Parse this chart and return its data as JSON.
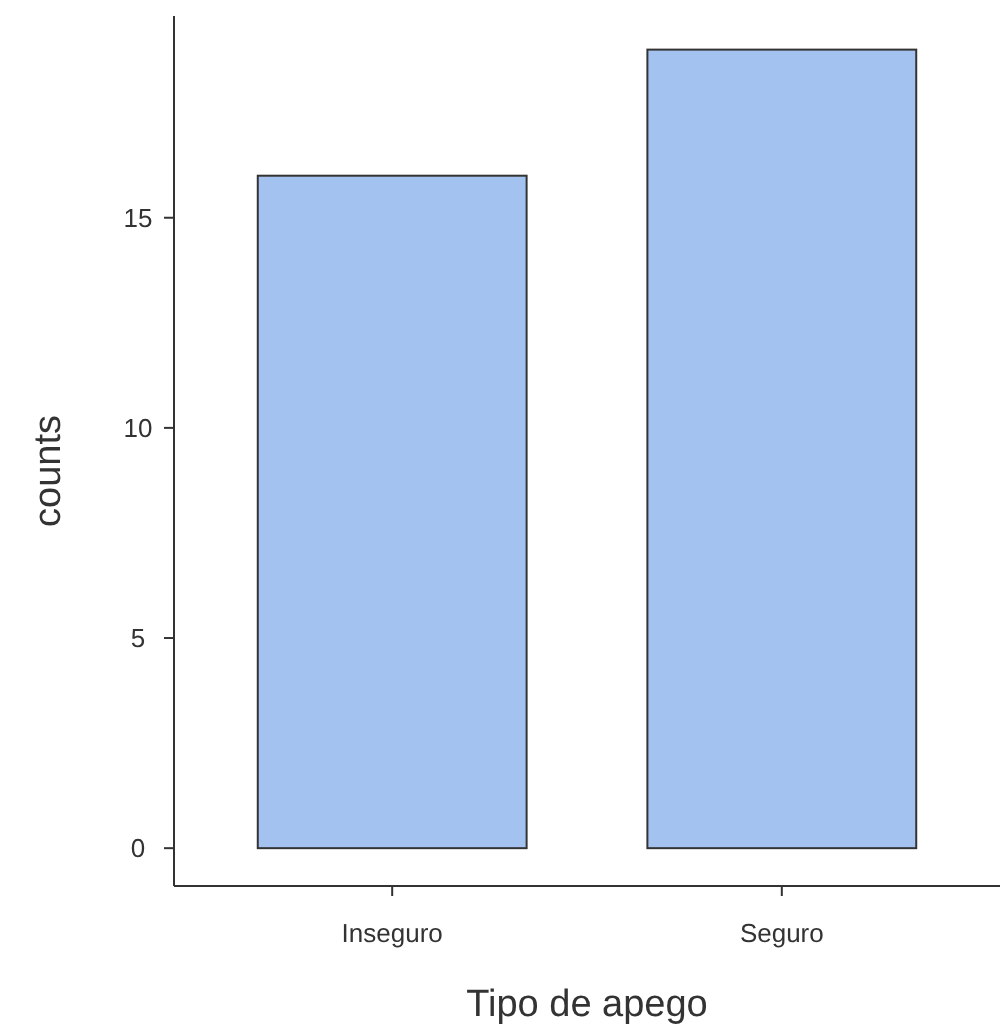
{
  "chart_data": {
    "type": "bar",
    "xlabel": "Tipo de apego",
    "ylabel": "counts",
    "categories": [
      "Inseguro",
      "Seguro"
    ],
    "values": [
      16,
      19
    ],
    "color": "#a4c2f0",
    "ylim": [
      -0.9,
      19.8
    ],
    "yticks": [
      0,
      5,
      10,
      15
    ],
    "grid": false
  }
}
